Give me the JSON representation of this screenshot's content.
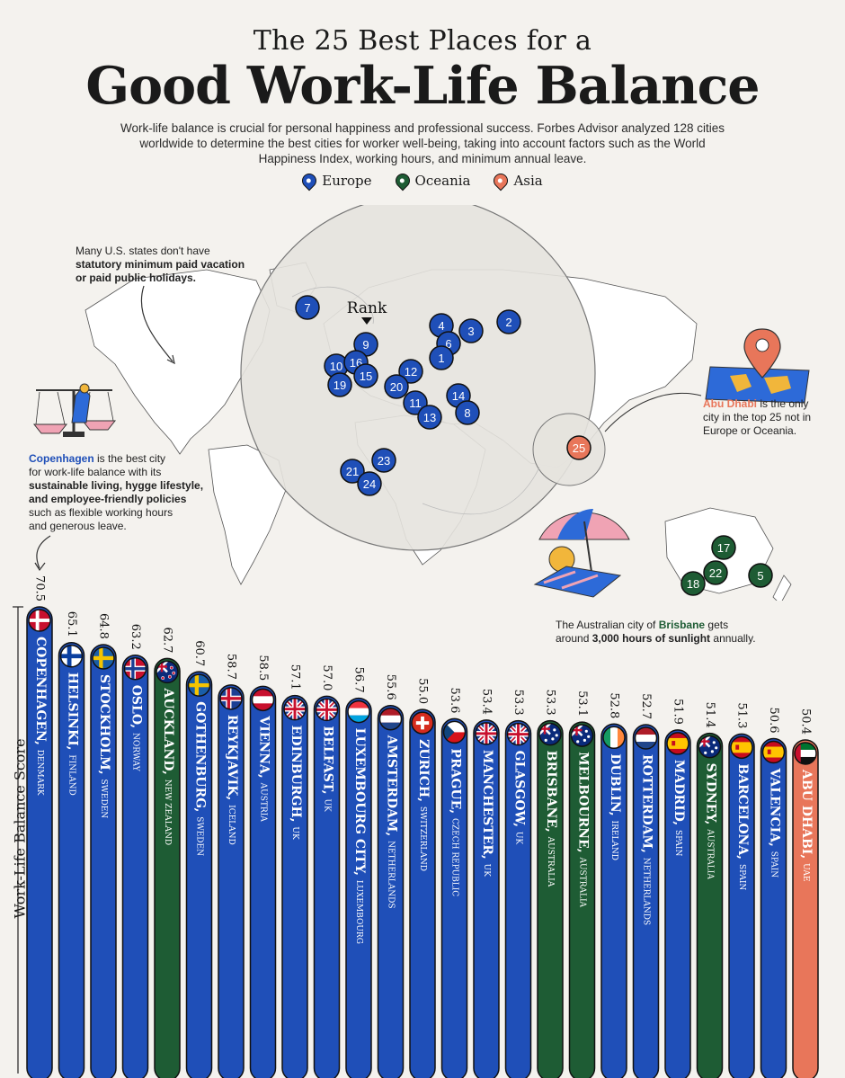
{
  "header": {
    "title_top": "The 25 Best Places for a",
    "title_main": "Good Work-Life Balance",
    "subtitle": "Work-life balance is crucial for personal happiness and professional success. Forbes Advisor analyzed 128 cities worldwide to determine the best cities for worker well-being, taking into account factors such as the World Happiness Index, working hours, and minimum annual leave."
  },
  "legend": [
    {
      "label": "Europe",
      "color": "#1f4fb8"
    },
    {
      "label": "Oceania",
      "color": "#1e5c34"
    },
    {
      "label": "Asia",
      "color": "#e8765a"
    }
  ],
  "map": {
    "rank_label": "Rank",
    "pins": [
      {
        "rank": "7",
        "region": "Europe"
      },
      {
        "rank": "2",
        "region": "Europe"
      },
      {
        "rank": "4",
        "region": "Europe"
      },
      {
        "rank": "3",
        "region": "Europe"
      },
      {
        "rank": "6",
        "region": "Europe"
      },
      {
        "rank": "1",
        "region": "Europe"
      },
      {
        "rank": "9",
        "region": "Europe"
      },
      {
        "rank": "10",
        "region": "Europe"
      },
      {
        "rank": "16",
        "region": "Europe"
      },
      {
        "rank": "15",
        "region": "Europe"
      },
      {
        "rank": "19",
        "region": "Europe"
      },
      {
        "rank": "12",
        "region": "Europe"
      },
      {
        "rank": "20",
        "region": "Europe"
      },
      {
        "rank": "11",
        "region": "Europe"
      },
      {
        "rank": "14",
        "region": "Europe"
      },
      {
        "rank": "13",
        "region": "Europe"
      },
      {
        "rank": "8",
        "region": "Europe"
      },
      {
        "rank": "23",
        "region": "Europe"
      },
      {
        "rank": "21",
        "region": "Europe"
      },
      {
        "rank": "24",
        "region": "Europe"
      },
      {
        "rank": "25",
        "region": "Asia"
      },
      {
        "rank": "17",
        "region": "Oceania"
      },
      {
        "rank": "22",
        "region": "Oceania"
      },
      {
        "rank": "18",
        "region": "Oceania"
      },
      {
        "rank": "5",
        "region": "Oceania"
      }
    ]
  },
  "notes": {
    "us_note_1": "Many U.S. states don't have",
    "us_note_2": "statutory minimum paid vacation",
    "us_note_3": "or paid public holidays.",
    "abu_city": "Abu Dhabi",
    "abu_rest_1": " is the only",
    "abu_rest_2": "city in the top 25 not in",
    "abu_rest_3": "Europe or Oceania.",
    "cph_city": "Copenhagen",
    "cph_rest_1": " is the best city",
    "cph_rest_2": "for work-life balance with its",
    "cph_bold_1": "sustainable living, hygge lifestyle,",
    "cph_bold_2": "and employee-friendly policies",
    "cph_rest_3": "such as flexible working hours",
    "cph_rest_4": "and generous leave.",
    "bris_pre": "The Australian city of ",
    "bris_city": "Brisbane",
    "bris_post": " gets",
    "bris_line2_pre": "around ",
    "bris_line2_bold": "3,000 hours of sunlight",
    "bris_line2_post": " annually."
  },
  "chart_data": {
    "type": "bar",
    "title": "Good Work-Life Balance",
    "ylabel": "Work-Life Balance Score",
    "xlabel": "",
    "ylim": [
      0,
      75
    ],
    "categories": [
      "COPENHAGEN",
      "HELSINKI",
      "STOCKHOLM",
      "OSLO",
      "AUCKLAND",
      "GOTHENBURG",
      "REYKJAVIK",
      "VIENNA",
      "EDINBURGH",
      "BELFAST",
      "LUXEMBOURG CITY",
      "AMSTERDAM",
      "ZURICH",
      "PRAGUE",
      "MANCHESTER",
      "GLASGOW",
      "BRISBANE",
      "MELBOURNE",
      "DUBLIN",
      "ROTTERDAM",
      "MADRID",
      "SYDNEY",
      "BARCELONA",
      "VALENCIA",
      "ABU DHABI"
    ],
    "countries": [
      "DENMARK",
      "FINLAND",
      "SWEDEN",
      "NORWAY",
      "NEW ZEALAND",
      "SWEDEN",
      "ICELAND",
      "AUSTRIA",
      "UK",
      "UK",
      "LUXEMBOURG",
      "NETHERLANDS",
      "SWITZERLAND",
      "CZECH REPUBLIC",
      "UK",
      "UK",
      "AUSTRALIA",
      "AUSTRALIA",
      "IRELAND",
      "NETHERLANDS",
      "SPAIN",
      "AUSTRALIA",
      "SPAIN",
      "SPAIN",
      "UAE"
    ],
    "values": [
      70.5,
      65.1,
      64.8,
      63.2,
      62.7,
      60.7,
      58.7,
      58.5,
      57.1,
      57.0,
      56.7,
      55.6,
      55.0,
      53.6,
      53.4,
      53.3,
      53.3,
      53.1,
      52.8,
      52.7,
      51.9,
      51.4,
      51.3,
      50.6,
      50.4
    ],
    "value_labels": [
      "70.5",
      "65.1",
      "64.8",
      "63.2",
      "62.7",
      "60.7",
      "58.7",
      "58.5",
      "57.1",
      "57.0",
      "56.7",
      "55.6",
      "55.0",
      "53.6",
      "53.4",
      "53.3",
      "53.3",
      "53.1",
      "52.8",
      "52.7",
      "51.9",
      "51.4",
      "51.3",
      "50.6",
      "50.4"
    ],
    "regions": [
      "Europe",
      "Europe",
      "Europe",
      "Europe",
      "Oceania",
      "Europe",
      "Europe",
      "Europe",
      "Europe",
      "Europe",
      "Europe",
      "Europe",
      "Europe",
      "Europe",
      "Europe",
      "Europe",
      "Oceania",
      "Oceania",
      "Europe",
      "Europe",
      "Europe",
      "Oceania",
      "Europe",
      "Europe",
      "Asia"
    ],
    "flags": [
      "denmark",
      "finland",
      "sweden",
      "norway",
      "new-zealand",
      "sweden",
      "iceland",
      "austria",
      "uk",
      "uk",
      "luxembourg",
      "netherlands",
      "switzerland",
      "czech-republic",
      "uk",
      "uk",
      "australia",
      "australia",
      "ireland",
      "netherlands",
      "spain",
      "australia",
      "spain",
      "spain",
      "uae"
    ],
    "region_colors": {
      "Europe": "#1f4fb8",
      "Oceania": "#1e5c34",
      "Asia": "#e8765a"
    }
  }
}
